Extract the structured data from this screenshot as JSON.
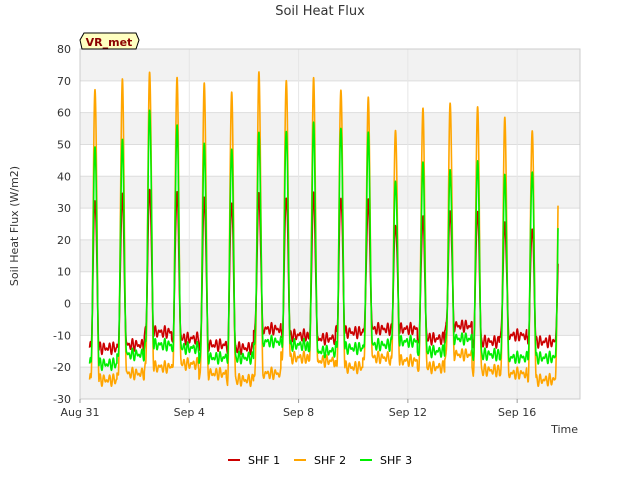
{
  "chart_data": {
    "type": "line",
    "title": "Soil Heat Flux",
    "xlabel": "Time",
    "ylabel": "Soil Heat Flux (W/m2)",
    "ylim": [
      -30,
      80
    ],
    "yticks": [
      -30,
      -20,
      -10,
      0,
      10,
      20,
      30,
      40,
      50,
      60,
      70,
      80
    ],
    "xlim_days": [
      0,
      18.3
    ],
    "xticks": [
      {
        "day": 0,
        "label": "Aug 31"
      },
      {
        "day": 4,
        "label": "Sep 4"
      },
      {
        "day": 8,
        "label": "Sep 8"
      },
      {
        "day": 12,
        "label": "Sep 12"
      },
      {
        "day": 16,
        "label": "Sep 16"
      }
    ],
    "grid": true,
    "legend_position": "bottom-center",
    "badge": "VR_met",
    "x_start_day": 0.35,
    "x_end_day": 17.5,
    "peak_phase": 0.55,
    "series": [
      {
        "name": "SHF 1",
        "color": "#cc0000",
        "daily_peaks": [
          33,
          34,
          36,
          35,
          33,
          32,
          34,
          34,
          34,
          34,
          32,
          25,
          27,
          29,
          29,
          25,
          24
        ],
        "daily_mins": [
          -14,
          -13,
          -9,
          -11,
          -13,
          -14,
          -8,
          -10,
          -11,
          -9,
          -8,
          -8,
          -11,
          -7,
          -12,
          -10,
          -12
        ]
      },
      {
        "name": "SHF 2",
        "color": "#ffa500",
        "daily_peaks": [
          68,
          70,
          73,
          71,
          69,
          67,
          72,
          71,
          70,
          68,
          64,
          55,
          61,
          63,
          62,
          58,
          55
        ],
        "daily_mins": [
          -24,
          -22,
          -20,
          -19,
          -22,
          -24,
          -22,
          -17,
          -18,
          -20,
          -17,
          -18,
          -20,
          -16,
          -21,
          -22,
          -24
        ]
      },
      {
        "name": "SHF 3",
        "color": "#00ee00",
        "daily_peaks": [
          50,
          51,
          61,
          56,
          50,
          49,
          53,
          55,
          56,
          56,
          53,
          39,
          44,
          42,
          45,
          40,
          42
        ],
        "daily_mins": [
          -19,
          -16,
          -13,
          -14,
          -17,
          -17,
          -12,
          -13,
          -15,
          -14,
          -13,
          -12,
          -15,
          -11,
          -16,
          -17,
          -17
        ]
      }
    ]
  }
}
